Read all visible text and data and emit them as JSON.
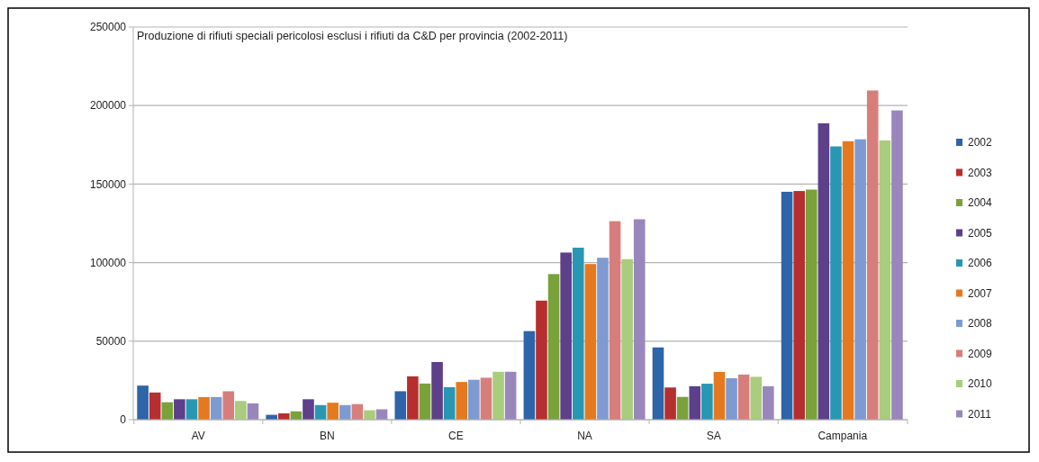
{
  "chart_data": {
    "type": "bar",
    "title": "Produzione di rifiuti speciali pericolosi esclusi i rifiuti da C&D per provincia (2002-2011)",
    "categories": [
      "AV",
      "BN",
      "CE",
      "NA",
      "SA",
      "Campania"
    ],
    "series": [
      {
        "name": "2002",
        "color": "#2e64a8",
        "values": [
          21700,
          3100,
          18100,
          56400,
          46000,
          145100
        ]
      },
      {
        "name": "2003",
        "color": "#b72e2e",
        "values": [
          17300,
          4000,
          27600,
          75800,
          20500,
          145600
        ]
      },
      {
        "name": "2004",
        "color": "#79a23a",
        "values": [
          11100,
          5300,
          23000,
          92700,
          14500,
          146500
        ]
      },
      {
        "name": "2005",
        "color": "#5d3f8a",
        "values": [
          13000,
          13000,
          36700,
          106400,
          21300,
          188700
        ]
      },
      {
        "name": "2006",
        "color": "#2797b4",
        "values": [
          13000,
          9300,
          20700,
          109500,
          22900,
          174000
        ]
      },
      {
        "name": "2007",
        "color": "#e5791f",
        "values": [
          14400,
          10800,
          24000,
          99100,
          30400,
          177300
        ]
      },
      {
        "name": "2008",
        "color": "#7d9bd1",
        "values": [
          14400,
          9300,
          25400,
          103100,
          26400,
          178500
        ]
      },
      {
        "name": "2009",
        "color": "#d77e7c",
        "values": [
          18100,
          9900,
          26700,
          126400,
          28700,
          209600
        ]
      },
      {
        "name": "2010",
        "color": "#a9cc7d",
        "values": [
          11900,
          6000,
          30500,
          102200,
          27300,
          177800
        ]
      },
      {
        "name": "2011",
        "color": "#9987bc",
        "values": [
          10400,
          6600,
          30500,
          127600,
          21300,
          196900
        ]
      }
    ],
    "ylim": [
      0,
      250000
    ],
    "yticks": [
      0,
      50000,
      100000,
      150000,
      200000,
      250000
    ],
    "grid": "y",
    "legend": "right"
  }
}
